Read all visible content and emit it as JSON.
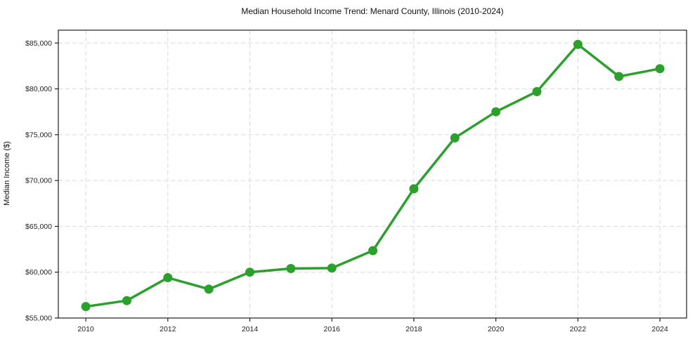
{
  "chart_data": {
    "type": "line",
    "title": "Median Household Income Trend: Menard County, Illinois (2010-2024)",
    "xlabel": "",
    "ylabel": "Median Income ($)",
    "x": [
      2010,
      2011,
      2012,
      2013,
      2014,
      2015,
      2016,
      2017,
      2018,
      2019,
      2020,
      2021,
      2022,
      2023,
      2024
    ],
    "values": [
      56250,
      56900,
      59400,
      58150,
      60000,
      60400,
      60450,
      62350,
      69100,
      74650,
      77500,
      79700,
      84850,
      81350,
      82200
    ],
    "x_tick_values": [
      2010,
      2012,
      2014,
      2016,
      2018,
      2020,
      2022,
      2024
    ],
    "x_tick_labels": [
      "2010",
      "2012",
      "2014",
      "2016",
      "2018",
      "2020",
      "2022",
      "2024"
    ],
    "y_tick_values": [
      55000,
      60000,
      65000,
      70000,
      75000,
      80000,
      85000
    ],
    "y_tick_labels": [
      "$55,000",
      "$60,000",
      "$65,000",
      "$70,000",
      "$75,000",
      "$80,000",
      "$85,000"
    ],
    "xlim": [
      2009.33,
      2024.65
    ],
    "ylim": [
      55000,
      86400
    ],
    "grid": true,
    "legend": "none",
    "colors": {
      "line": "#2ca02c",
      "marker": "#2ca02c",
      "grid": "#d9d9d9",
      "spine": "#1f1f1f",
      "tick_text": "#1f1f1f",
      "background": "#ffffff"
    }
  }
}
